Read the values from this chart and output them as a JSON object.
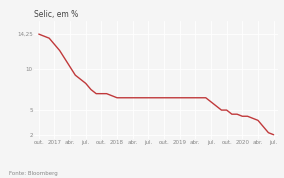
{
  "title": "Selic, em %",
  "source": "Fonte: Bloomberg",
  "line_color": "#c0393b",
  "bg_color": "#f5f5f5",
  "grid_color": "#ffffff",
  "tick_label_color": "#888888",
  "title_color": "#444444",
  "source_color": "#888888",
  "ylim": [
    1.5,
    15.8
  ],
  "yticks": [
    14.25,
    10,
    5,
    2
  ],
  "ytick_labels": [
    "14,25",
    "10",
    "5",
    "2"
  ],
  "xtick_labels": [
    "out.",
    "2017",
    "abr.",
    "jul.",
    "out.",
    "2018",
    "abr.",
    "jul.",
    "out.",
    "2019",
    "abr.",
    "jul.",
    "out.",
    "2020",
    "abr.",
    "jul."
  ],
  "selic_values": [
    14.25,
    14.0,
    13.75,
    13.0,
    12.25,
    11.25,
    10.25,
    9.25,
    8.75,
    8.25,
    7.5,
    7.0,
    7.0,
    7.0,
    6.75,
    6.5,
    6.5,
    6.5,
    6.5,
    6.5,
    6.5,
    6.5,
    6.5,
    6.5,
    6.5,
    6.5,
    6.5,
    6.5,
    6.5,
    6.5,
    6.5,
    6.5,
    6.5,
    6.0,
    5.5,
    5.0,
    5.0,
    4.5,
    4.5,
    4.25,
    4.25,
    4.0,
    3.75,
    3.0,
    2.25,
    2.0
  ],
  "line_width": 1.0,
  "title_fontsize": 5.5,
  "tick_fontsize": 4.0,
  "source_fontsize": 4.0
}
